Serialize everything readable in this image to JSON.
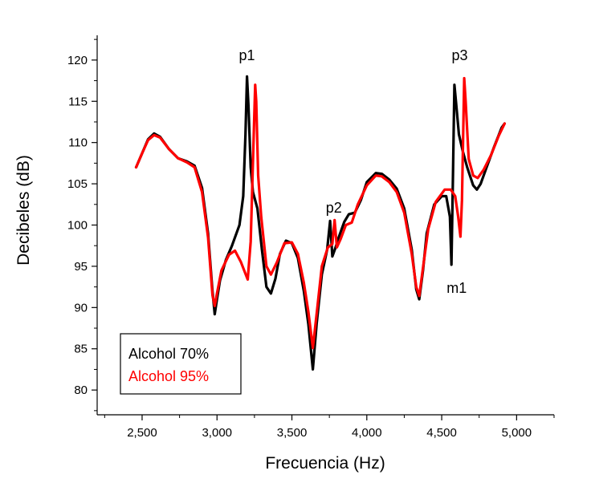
{
  "chart_data": {
    "type": "line",
    "title": "",
    "xlabel": "Frecuencia (Hz)",
    "ylabel": "Decibeles (dB)",
    "xlim": [
      2200,
      5250
    ],
    "ylim": [
      77,
      123
    ],
    "xticks": [
      2500,
      3000,
      3500,
      4000,
      4500,
      5000
    ],
    "xtick_labels": [
      "2,500",
      "3,000",
      "3,500",
      "4,000",
      "4,500",
      "5,000"
    ],
    "yticks": [
      80,
      85,
      90,
      95,
      100,
      105,
      110,
      115,
      120
    ],
    "ytick_labels": [
      "80",
      "85",
      "90",
      "95",
      "100",
      "105",
      "110",
      "115",
      "120"
    ],
    "grid": false,
    "legend_placement": "bottom-left",
    "annotations": [
      {
        "text": "p1",
        "x": 3200,
        "y": 120
      },
      {
        "text": "p2",
        "x": 3780,
        "y": 101.5
      },
      {
        "text": "p3",
        "x": 4620,
        "y": 120
      },
      {
        "text": "m1",
        "x": 4600,
        "y": 91.8
      }
    ],
    "series": [
      {
        "name": "Alcohol 70%",
        "color": "#000000",
        "points": [
          [
            2460,
            107
          ],
          [
            2500,
            108.7
          ],
          [
            2540,
            110.4
          ],
          [
            2580,
            111.1
          ],
          [
            2620,
            110.7
          ],
          [
            2680,
            109.2
          ],
          [
            2740,
            108.1
          ],
          [
            2800,
            107.7
          ],
          [
            2850,
            107.2
          ],
          [
            2900,
            104.5
          ],
          [
            2940,
            99
          ],
          [
            2970,
            92
          ],
          [
            2985,
            89.2
          ],
          [
            3000,
            91
          ],
          [
            3020,
            93.3
          ],
          [
            3060,
            95.8
          ],
          [
            3100,
            97.5
          ],
          [
            3150,
            100
          ],
          [
            3175,
            103.5
          ],
          [
            3190,
            111
          ],
          [
            3200,
            118
          ],
          [
            3210,
            114.5
          ],
          [
            3225,
            107
          ],
          [
            3240,
            104
          ],
          [
            3270,
            102
          ],
          [
            3300,
            97
          ],
          [
            3330,
            92.5
          ],
          [
            3360,
            91.7
          ],
          [
            3390,
            93.5
          ],
          [
            3420,
            96.5
          ],
          [
            3460,
            98.1
          ],
          [
            3500,
            97.8
          ],
          [
            3540,
            96
          ],
          [
            3580,
            92
          ],
          [
            3610,
            88
          ],
          [
            3640,
            82.5
          ],
          [
            3665,
            88
          ],
          [
            3700,
            94
          ],
          [
            3735,
            97
          ],
          [
            3755,
            100.5
          ],
          [
            3770,
            96.2
          ],
          [
            3790,
            97.2
          ],
          [
            3810,
            98.4
          ],
          [
            3850,
            100.4
          ],
          [
            3880,
            101.3
          ],
          [
            3920,
            101.5
          ],
          [
            3960,
            103
          ],
          [
            4000,
            105.2
          ],
          [
            4060,
            106.3
          ],
          [
            4100,
            106.2
          ],
          [
            4150,
            105.5
          ],
          [
            4200,
            104.4
          ],
          [
            4250,
            102
          ],
          [
            4300,
            97
          ],
          [
            4330,
            92.2
          ],
          [
            4350,
            91
          ],
          [
            4375,
            94.5
          ],
          [
            4400,
            99
          ],
          [
            4450,
            102.5
          ],
          [
            4500,
            103.5
          ],
          [
            4530,
            103.5
          ],
          [
            4555,
            101
          ],
          [
            4565,
            95.2
          ],
          [
            4575,
            106
          ],
          [
            4585,
            117
          ],
          [
            4595,
            115
          ],
          [
            4615,
            111
          ],
          [
            4640,
            109
          ],
          [
            4670,
            107
          ],
          [
            4710,
            104.8
          ],
          [
            4735,
            104.3
          ],
          [
            4760,
            105
          ],
          [
            4800,
            107
          ],
          [
            4850,
            109.5
          ],
          [
            4900,
            111.8
          ],
          [
            4920,
            112.3
          ]
        ]
      },
      {
        "name": "Alcohol 95%",
        "color": "#ff0000",
        "points": [
          [
            2460,
            107
          ],
          [
            2500,
            108.7
          ],
          [
            2540,
            110.3
          ],
          [
            2580,
            110.9
          ],
          [
            2620,
            110.6
          ],
          [
            2680,
            109.2
          ],
          [
            2740,
            108.1
          ],
          [
            2800,
            107.6
          ],
          [
            2850,
            107
          ],
          [
            2900,
            104
          ],
          [
            2940,
            98.5
          ],
          [
            2970,
            91.5
          ],
          [
            2985,
            90.2
          ],
          [
            3000,
            91.7
          ],
          [
            3030,
            94.5
          ],
          [
            3080,
            96.4
          ],
          [
            3120,
            96.9
          ],
          [
            3160,
            95.5
          ],
          [
            3205,
            93.4
          ],
          [
            3225,
            98
          ],
          [
            3245,
            111
          ],
          [
            3255,
            117
          ],
          [
            3262,
            115
          ],
          [
            3275,
            106
          ],
          [
            3295,
            101
          ],
          [
            3330,
            95
          ],
          [
            3360,
            94
          ],
          [
            3400,
            95.5
          ],
          [
            3450,
            97.8
          ],
          [
            3500,
            97.9
          ],
          [
            3540,
            96.5
          ],
          [
            3580,
            93
          ],
          [
            3610,
            89.5
          ],
          [
            3640,
            85.1
          ],
          [
            3670,
            90
          ],
          [
            3700,
            95
          ],
          [
            3740,
            97.3
          ],
          [
            3770,
            97.7
          ],
          [
            3785,
            100.6
          ],
          [
            3800,
            97.3
          ],
          [
            3825,
            98.3
          ],
          [
            3860,
            100
          ],
          [
            3900,
            100.3
          ],
          [
            3940,
            102.5
          ],
          [
            4000,
            104.8
          ],
          [
            4060,
            106
          ],
          [
            4100,
            105.9
          ],
          [
            4150,
            105.2
          ],
          [
            4200,
            104
          ],
          [
            4250,
            101.5
          ],
          [
            4300,
            96.5
          ],
          [
            4330,
            92.5
          ],
          [
            4350,
            91.4
          ],
          [
            4380,
            95.5
          ],
          [
            4410,
            99.5
          ],
          [
            4460,
            102.8
          ],
          [
            4520,
            104.3
          ],
          [
            4560,
            104.3
          ],
          [
            4590,
            103.5
          ],
          [
            4610,
            101
          ],
          [
            4625,
            98.6
          ],
          [
            4635,
            103
          ],
          [
            4650,
            117.8
          ],
          [
            4660,
            115
          ],
          [
            4680,
            108
          ],
          [
            4710,
            106
          ],
          [
            4740,
            105.7
          ],
          [
            4780,
            106.7
          ],
          [
            4830,
            108.5
          ],
          [
            4880,
            110.8
          ],
          [
            4920,
            112.3
          ]
        ]
      }
    ]
  }
}
